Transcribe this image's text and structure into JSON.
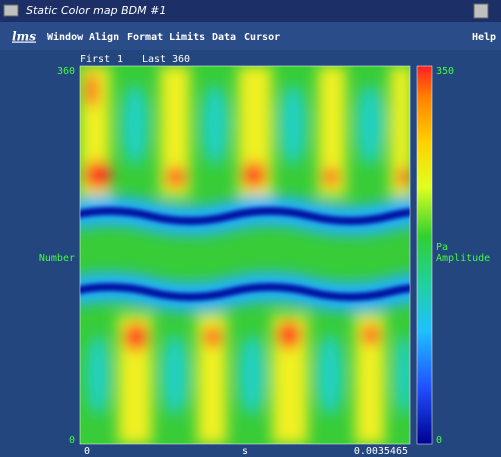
{
  "window": {
    "title": "Static Color map BDM #1"
  },
  "menu": {
    "logo": "lms",
    "items": [
      "Window",
      "Align",
      "Format",
      "Limits",
      "Data",
      "Cursor"
    ],
    "help": "Help"
  },
  "plot": {
    "first_label": "First",
    "first": 1,
    "last_label": "Last",
    "last": 360,
    "y_axis": {
      "label": "Number",
      "max": 360,
      "min": 0
    },
    "x_axis": {
      "label": "s",
      "min": 0,
      "max": 0.0035465
    },
    "colorbar": {
      "max": 350,
      "unit": "Pa",
      "label": "Amplitude",
      "min": 0
    }
  }
}
